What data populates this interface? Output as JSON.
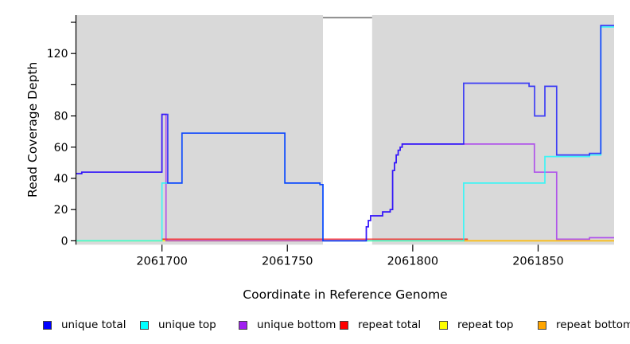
{
  "page": {
    "background": "#ffffff"
  },
  "y_axis": {
    "label": "Read Coverage Depth",
    "ticks": [
      {
        "v": 0,
        "label": "0"
      },
      {
        "v": 20,
        "label": "20"
      },
      {
        "v": 40,
        "label": "40"
      },
      {
        "v": 60,
        "label": "60"
      },
      {
        "v": 80,
        "label": "80"
      },
      {
        "v": 100,
        "label": ""
      },
      {
        "v": 120,
        "label": "120"
      },
      {
        "v": 140,
        "label": ""
      }
    ]
  },
  "x_axis": {
    "label": "Coordinate in Reference Genome",
    "ticks": [
      {
        "v": 2061700,
        "label": "2061700"
      },
      {
        "v": 2061750,
        "label": "2061750"
      },
      {
        "v": 2061800,
        "label": "2061800"
      },
      {
        "v": 2061850,
        "label": "2061850"
      }
    ]
  },
  "chart_data": {
    "type": "line",
    "step": "after",
    "xlabel": "Coordinate in Reference Genome",
    "ylabel": "Read Coverage Depth",
    "xlim": [
      2061665.7,
      2061880.3
    ],
    "ylim": [
      -2.5,
      144.6
    ],
    "grid": false,
    "plot_background": "#d9d9d9",
    "masked_region": {
      "x1": 2061764.2,
      "x2": 2061783.8,
      "color": "#ffffff",
      "cap_color": "#8c8c8c",
      "cap_depth": 143.0
    },
    "line_width": 1.7,
    "line_opacity": 0.72,
    "series": [
      {
        "name": "repeat top",
        "color": "#ffff00",
        "points": [
          [
            2061665.7,
            0
          ],
          [
            2061880.3,
            0
          ]
        ]
      },
      {
        "name": "repeat bottom",
        "color": "#ffa500",
        "points": [
          [
            2061700,
            1
          ],
          [
            2061702.3,
            1
          ]
        ]
      },
      {
        "name": "repeat bottom",
        "color": "#ffa500",
        "points": [
          [
            2061820.3,
            0
          ],
          [
            2061880.3,
            0
          ]
        ]
      },
      {
        "name": "repeat total",
        "color": "#ff0000",
        "points": [
          [
            2061700,
            1
          ],
          [
            2061822,
            1
          ]
        ]
      },
      {
        "name": "unique bottom",
        "color": "#a020f0",
        "points": [
          [
            2061665.7,
            43
          ],
          [
            2061668,
            44
          ],
          [
            2061700,
            81
          ],
          [
            2061701.6,
            0
          ],
          [
            2061781.5,
            9
          ],
          [
            2061782.3,
            13
          ],
          [
            2061783.2,
            16
          ],
          [
            2061788,
            18.5
          ],
          [
            2061791,
            20
          ],
          [
            2061792,
            45
          ],
          [
            2061792.7,
            50
          ],
          [
            2061793.4,
            55
          ],
          [
            2061794.2,
            58
          ],
          [
            2061795,
            60
          ],
          [
            2061795.8,
            62
          ],
          [
            2061848.5,
            44
          ],
          [
            2061857.4,
            1
          ],
          [
            2061870.5,
            2
          ],
          [
            2061880.3,
            2
          ]
        ]
      },
      {
        "name": "unique top",
        "color": "#00ffff",
        "points": [
          [
            2061665.7,
            0
          ],
          [
            2061700,
            37
          ],
          [
            2061708,
            69
          ],
          [
            2061749,
            37
          ],
          [
            2061763,
            36
          ],
          [
            2061764.2,
            0
          ],
          [
            2061820.3,
            37
          ],
          [
            2061852.7,
            54
          ],
          [
            2061870.5,
            55
          ],
          [
            2061875,
            137
          ],
          [
            2061880.3,
            137
          ]
        ]
      },
      {
        "name": "unique total",
        "color": "#0000ff",
        "points": [
          [
            2061665.7,
            43
          ],
          [
            2061668,
            44
          ],
          [
            2061700,
            81
          ],
          [
            2061702.3,
            37
          ],
          [
            2061708,
            69
          ],
          [
            2061749,
            37
          ],
          [
            2061763,
            36
          ],
          [
            2061764.2,
            0
          ],
          [
            2061781.5,
            9
          ],
          [
            2061782.3,
            13
          ],
          [
            2061783.2,
            16
          ],
          [
            2061788,
            18.5
          ],
          [
            2061791,
            20
          ],
          [
            2061792,
            45
          ],
          [
            2061792.7,
            50
          ],
          [
            2061793.4,
            55
          ],
          [
            2061794.2,
            58
          ],
          [
            2061795,
            60
          ],
          [
            2061795.8,
            62
          ],
          [
            2061820.3,
            101
          ],
          [
            2061846.4,
            99
          ],
          [
            2061848.6,
            80
          ],
          [
            2061852.7,
            99
          ],
          [
            2061857.4,
            55
          ],
          [
            2061870.5,
            56
          ],
          [
            2061875,
            138
          ],
          [
            2061880.3,
            138
          ]
        ]
      }
    ],
    "legend": [
      {
        "label": "unique total",
        "color": "#0000ff"
      },
      {
        "label": "unique top",
        "color": "#00ffff"
      },
      {
        "label": "unique bottom",
        "color": "#a020f0"
      },
      {
        "label": "repeat total",
        "color": "#ff0000"
      },
      {
        "label": "repeat top",
        "color": "#ffff00"
      },
      {
        "label": "repeat bottom",
        "color": "#ffa500"
      }
    ],
    "legend_position": "bottom"
  }
}
